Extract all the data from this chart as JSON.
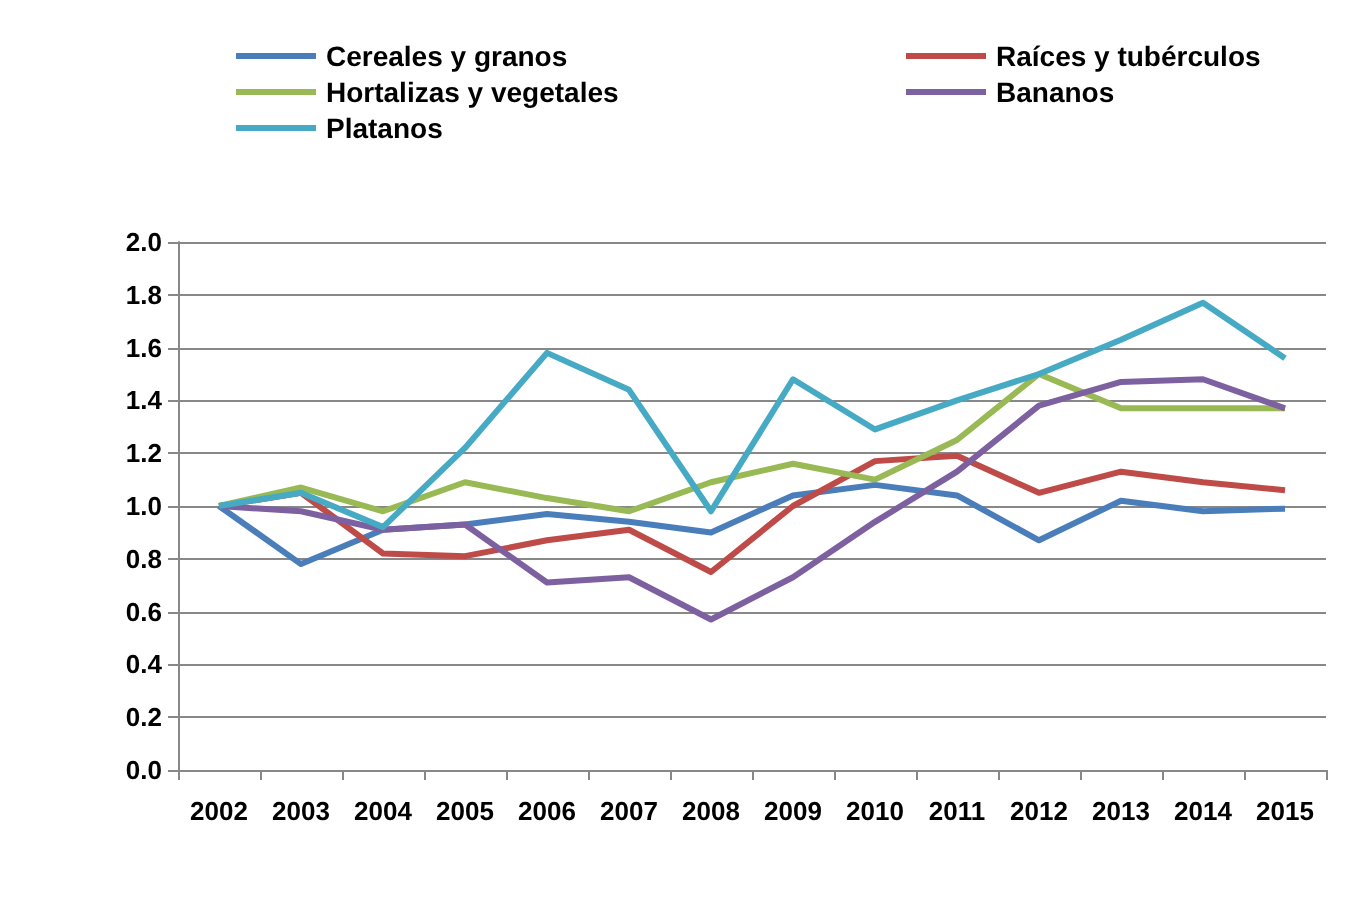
{
  "chart_data": {
    "type": "line",
    "categories": [
      "2002",
      "2003",
      "2004",
      "2005",
      "2006",
      "2007",
      "2008",
      "2009",
      "2010",
      "2011",
      "2012",
      "2013",
      "2014",
      "2015"
    ],
    "series": [
      {
        "name": "Cereales y granos",
        "color": "#4a7ebb",
        "values": [
          1.0,
          0.78,
          0.91,
          0.93,
          0.97,
          0.94,
          0.9,
          1.04,
          1.08,
          1.04,
          0.87,
          1.02,
          0.98,
          0.99
        ]
      },
      {
        "name": "Raíces y tubérculos",
        "color": "#be4b48",
        "values": [
          1.0,
          1.05,
          0.82,
          0.81,
          0.87,
          0.91,
          0.75,
          1.0,
          1.17,
          1.19,
          1.05,
          1.13,
          1.09,
          1.06
        ]
      },
      {
        "name": "Hortalizas y vegetales",
        "color": "#98b954",
        "values": [
          1.0,
          1.07,
          0.98,
          1.09,
          1.03,
          0.98,
          1.09,
          1.16,
          1.1,
          1.25,
          1.5,
          1.37,
          1.37,
          1.37
        ]
      },
      {
        "name": "Bananos",
        "color": "#7d60a0",
        "values": [
          1.0,
          0.98,
          0.91,
          0.93,
          0.71,
          0.73,
          0.57,
          0.73,
          0.94,
          1.13,
          1.38,
          1.47,
          1.48,
          1.37
        ]
      },
      {
        "name": "Platanos",
        "color": "#46aac5",
        "values": [
          1.0,
          1.05,
          0.92,
          1.22,
          1.58,
          1.44,
          0.98,
          1.48,
          1.29,
          1.4,
          1.5,
          1.63,
          1.77,
          1.56
        ]
      }
    ],
    "ylim": [
      0,
      2
    ],
    "yticks": [
      {
        "value": 0,
        "label": "0.0"
      },
      {
        "value": 0.2,
        "label": "0.2"
      },
      {
        "value": 0.4,
        "label": "0.4"
      },
      {
        "value": 0.6,
        "label": "0.6"
      },
      {
        "value": 0.8,
        "label": "0.8"
      },
      {
        "value": 1,
        "label": "1.0"
      },
      {
        "value": 1.2,
        "label": "1.2"
      },
      {
        "value": 1.4,
        "label": "1.4"
      },
      {
        "value": 1.6,
        "label": "1.6"
      },
      {
        "value": 1.8,
        "label": "1.8"
      },
      {
        "value": 2,
        "label": "2.0"
      }
    ],
    "grid": "y",
    "legend": "top",
    "marker": "none",
    "line_style": "solid"
  }
}
